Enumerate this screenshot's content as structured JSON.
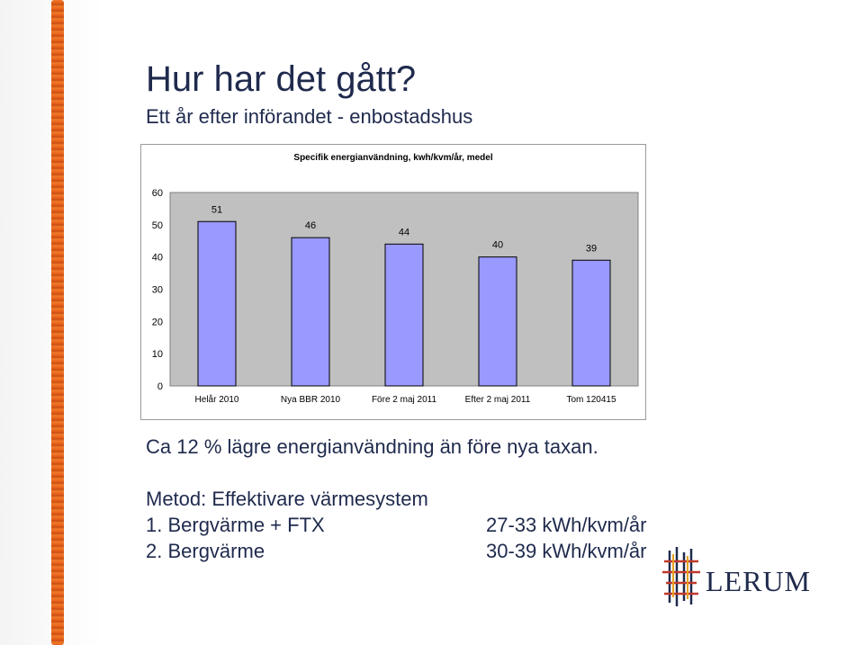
{
  "slide": {
    "title": "Hur har det gått?",
    "subtitle": "Ett år efter införandet - enbostadshus"
  },
  "chart_data": {
    "type": "bar",
    "title": "Specifik energianvändning, kwh/kvm/år, medel",
    "categories": [
      "Helår 2010",
      "Nya BBR 2010",
      "Före 2 maj 2011",
      "Efter 2 maj 2011",
      "Tom 120415"
    ],
    "values": [
      51,
      46,
      44,
      40,
      39
    ],
    "ylim": [
      0,
      60
    ],
    "yticks": [
      0,
      10,
      20,
      30,
      40,
      50,
      60
    ],
    "bar_color": "#9999ff",
    "plot_background": "#c0c0c0",
    "xlabel": "",
    "ylabel": "",
    "grid": false,
    "data_labels": true
  },
  "text": {
    "conclusion": "Ca 12 % lägre energianvändning än före nya taxan.",
    "method_heading": "Metod: Effektivare värmesystem",
    "methods": [
      {
        "label": "1. Bergvärme + FTX",
        "range": "27-33 kWh/kvm/år"
      },
      {
        "label": "2. Bergvärme",
        "range": "30-39 kWh/kvm/år"
      }
    ]
  },
  "logo": {
    "name": "LERUM",
    "icon": "lerum-emblem-icon"
  },
  "colors": {
    "title": "#1f2a4d",
    "frame_accent": "#e8621c"
  }
}
